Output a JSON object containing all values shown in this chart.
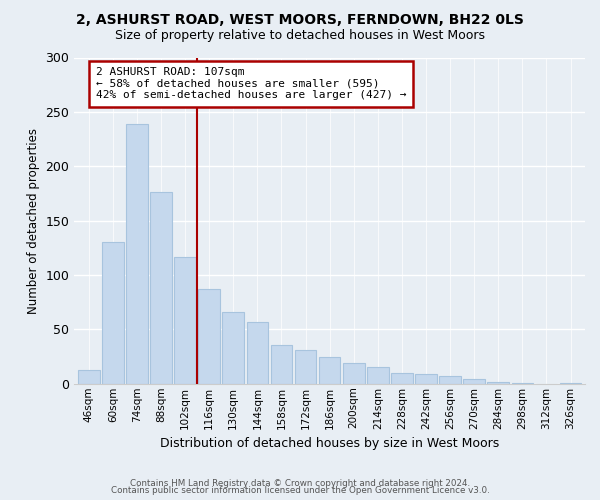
{
  "title1": "2, ASHURST ROAD, WEST MOORS, FERNDOWN, BH22 0LS",
  "title2": "Size of property relative to detached houses in West Moors",
  "xlabel": "Distribution of detached houses by size in West Moors",
  "ylabel": "Number of detached properties",
  "bar_labels": [
    "46sqm",
    "60sqm",
    "74sqm",
    "88sqm",
    "102sqm",
    "116sqm",
    "130sqm",
    "144sqm",
    "158sqm",
    "172sqm",
    "186sqm",
    "200sqm",
    "214sqm",
    "228sqm",
    "242sqm",
    "256sqm",
    "270sqm",
    "284sqm",
    "298sqm",
    "312sqm",
    "326sqm"
  ],
  "bar_values": [
    13,
    130,
    239,
    176,
    117,
    87,
    66,
    57,
    36,
    31,
    25,
    19,
    15,
    10,
    9,
    7,
    4,
    2,
    1,
    0,
    1
  ],
  "bar_color": "#c5d8ed",
  "bar_edge_color": "#a8c4de",
  "vline_x": 4.5,
  "vline_color": "#aa0000",
  "annotation_title": "2 ASHURST ROAD: 107sqm",
  "annotation_line1": "← 58% of detached houses are smaller (595)",
  "annotation_line2": "42% of semi-detached houses are larger (427) →",
  "annotation_box_color": "white",
  "annotation_box_edge": "#aa0000",
  "ylim": [
    0,
    300
  ],
  "yticks": [
    0,
    50,
    100,
    150,
    200,
    250,
    300
  ],
  "footer1": "Contains HM Land Registry data © Crown copyright and database right 2024.",
  "footer2": "Contains public sector information licensed under the Open Government Licence v3.0.",
  "bg_color": "#e8eef4"
}
